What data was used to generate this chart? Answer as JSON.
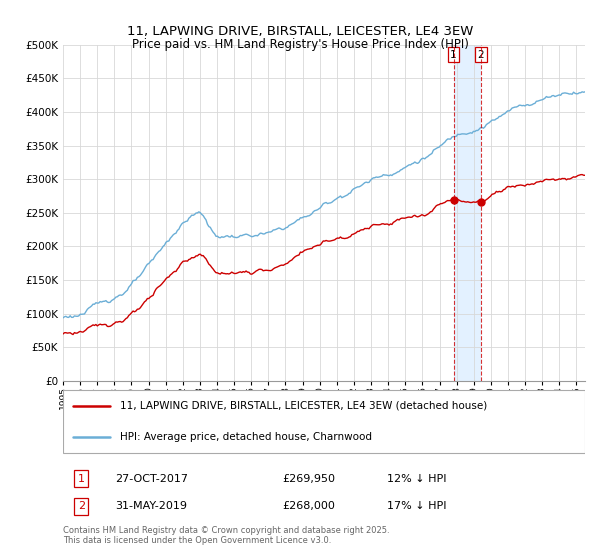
{
  "title1": "11, LAPWING DRIVE, BIRSTALL, LEICESTER, LE4 3EW",
  "title2": "Price paid vs. HM Land Registry's House Price Index (HPI)",
  "hpi_color": "#6baed6",
  "property_color": "#cc0000",
  "vline_color": "#cc0000",
  "background_color": "#ffffff",
  "grid_color": "#d8d8d8",
  "ylim": [
    0,
    500000
  ],
  "yticks": [
    0,
    50000,
    100000,
    150000,
    200000,
    250000,
    300000,
    350000,
    400000,
    450000,
    500000
  ],
  "sale1": {
    "date": "27-OCT-2017",
    "price": 269950,
    "hpi_diff": "12% ↓ HPI",
    "label": "1",
    "x": 2017.82
  },
  "sale2": {
    "date": "31-MAY-2019",
    "price": 268000,
    "hpi_diff": "17% ↓ HPI",
    "label": "2",
    "x": 2019.41
  },
  "legend_line1": "11, LAPWING DRIVE, BIRSTALL, LEICESTER, LE4 3EW (detached house)",
  "legend_line2": "HPI: Average price, detached house, Charnwood",
  "footnote": "Contains HM Land Registry data © Crown copyright and database right 2025.\nThis data is licensed under the Open Government Licence v3.0.",
  "xmin": 1995,
  "xmax": 2025.5,
  "highlight_color": "#ddeeff"
}
